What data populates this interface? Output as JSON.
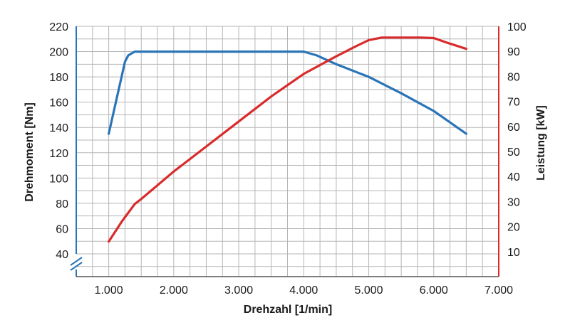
{
  "chart_data": {
    "type": "line",
    "xlabel": "Drehzahl [1/min]",
    "ylabel_left": "Drehmoment [Nm]",
    "ylabel_right": "Leistung [kW]",
    "xlim": [
      500,
      7000
    ],
    "ylim_left": [
      22,
      220
    ],
    "ylim_right": [
      0,
      100
    ],
    "left_axis_break": true,
    "grid": true,
    "x_tick_values": [
      1000,
      2000,
      3000,
      4000,
      5000,
      6000,
      7000
    ],
    "x_tick_labels": [
      "1.000",
      "2.000",
      "3.000",
      "4.000",
      "5.000",
      "6.000",
      "7.000"
    ],
    "y_left_ticks": [
      40,
      60,
      80,
      100,
      120,
      140,
      160,
      180,
      200,
      220
    ],
    "y_right_ticks": [
      10,
      20,
      30,
      40,
      50,
      60,
      70,
      80,
      90,
      100
    ],
    "series": [
      {
        "axis": "left",
        "color": "#2a74b8",
        "x": [
          1000,
          1250,
          1300,
          1400,
          1500,
          2000,
          3000,
          4000,
          4200,
          4500,
          5000,
          5500,
          6000,
          6500
        ],
        "values": [
          135,
          192,
          197,
          200,
          200,
          200,
          200,
          200,
          197,
          190,
          180,
          167,
          153,
          135
        ]
      },
      {
        "axis": "right",
        "color": "#d92b2b",
        "x": [
          1000,
          1200,
          1400,
          1500,
          2000,
          2500,
          3000,
          3500,
          4000,
          4500,
          4800,
          5000,
          5200,
          5500,
          5800,
          6000,
          6200,
          6500
        ],
        "values": [
          14,
          22,
          29,
          31,
          42,
          52,
          62,
          72,
          81,
          88,
          92,
          94.5,
          95.5,
          95.5,
          95.5,
          95.3,
          93.5,
          91
        ]
      }
    ]
  }
}
